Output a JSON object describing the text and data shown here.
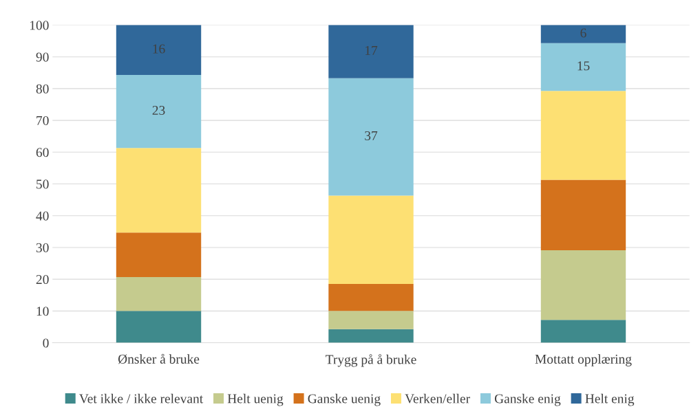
{
  "chart_data": {
    "type": "bar",
    "stacked": true,
    "categories": [
      "Ønsker å bruke",
      "Trygg på å bruke",
      "Mottatt opplæring"
    ],
    "series": [
      {
        "name": "Vet ikke / ikke relevant",
        "color": "#3f8a8c",
        "values": [
          10,
          4.3,
          7.2
        ]
      },
      {
        "name": "Helt uenig",
        "color": "#c5cb8e",
        "values": [
          10.7,
          5.7,
          21.9
        ]
      },
      {
        "name": "Ganske uenig",
        "color": "#d4721c",
        "values": [
          14,
          8.5,
          22.2
        ]
      },
      {
        "name": "Verken/eller",
        "color": "#fde073",
        "values": [
          26.6,
          27.8,
          28
        ]
      },
      {
        "name": "Ganske enig",
        "color": "#8dcadc",
        "values": [
          23,
          37,
          15
        ],
        "value_labels": [
          "23",
          "37",
          "15"
        ]
      },
      {
        "name": "Helt enig",
        "color": "#30689a",
        "values": [
          16,
          17,
          6
        ],
        "value_labels": [
          "16",
          "17",
          "6"
        ]
      }
    ],
    "ylim": [
      0,
      100
    ],
    "yticks": [
      0,
      10,
      20,
      30,
      40,
      50,
      60,
      70,
      80,
      90,
      100
    ],
    "grid": "y",
    "legend": "bottom"
  }
}
